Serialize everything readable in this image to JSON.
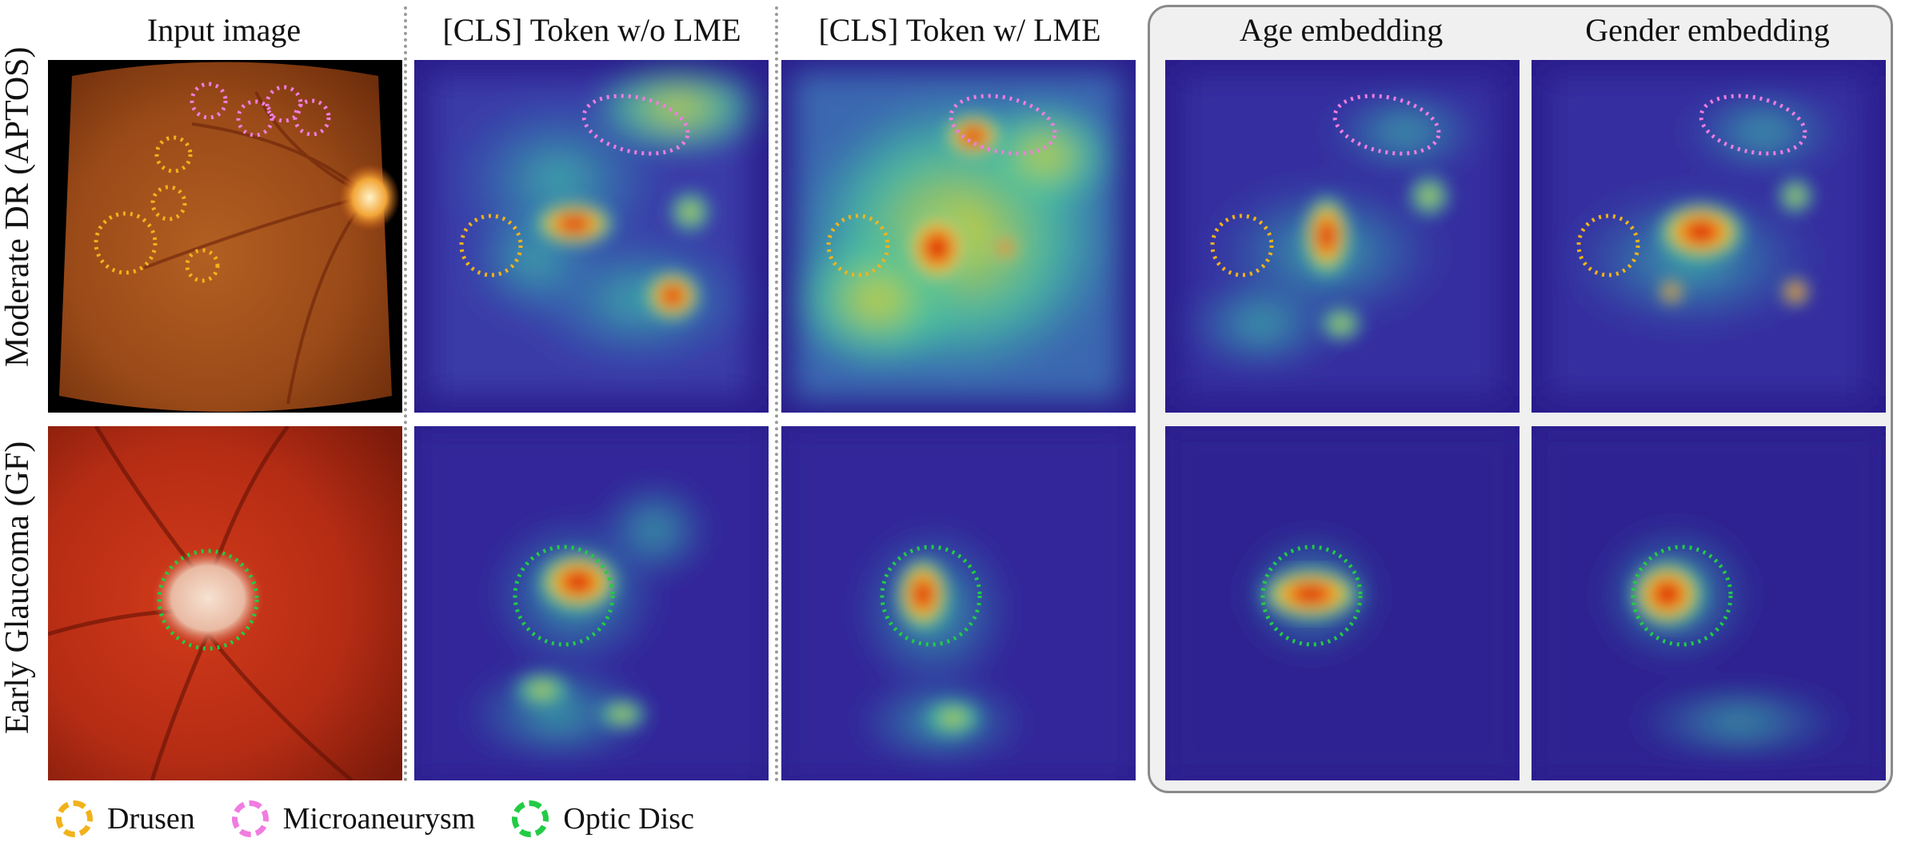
{
  "columns": [
    {
      "title": "Input image"
    },
    {
      "title": "[CLS] Token w/o LME"
    },
    {
      "title": "[CLS] Token w/ LME"
    },
    {
      "title": "Age embedding"
    },
    {
      "title": "Gender embedding"
    }
  ],
  "rows": [
    {
      "label": "Moderate DR (APTOS)"
    },
    {
      "label": "Early Glaucoma (GF)"
    }
  ],
  "legend": [
    {
      "label": "Drusen",
      "color": "#f2b21b"
    },
    {
      "label": "Microaneurysm",
      "color": "#f07ce0"
    },
    {
      "label": "Optic Disc",
      "color": "#22cc44"
    }
  ],
  "colors": {
    "heatmap_low": "#2a1d8c",
    "heatmap_mid": "#35c0a4",
    "heatmap_high": "#d4140c",
    "fundus_dr": "#9a4a18",
    "fundus_glaucoma": "#b42c14",
    "group_box": "#f0f0f0"
  }
}
